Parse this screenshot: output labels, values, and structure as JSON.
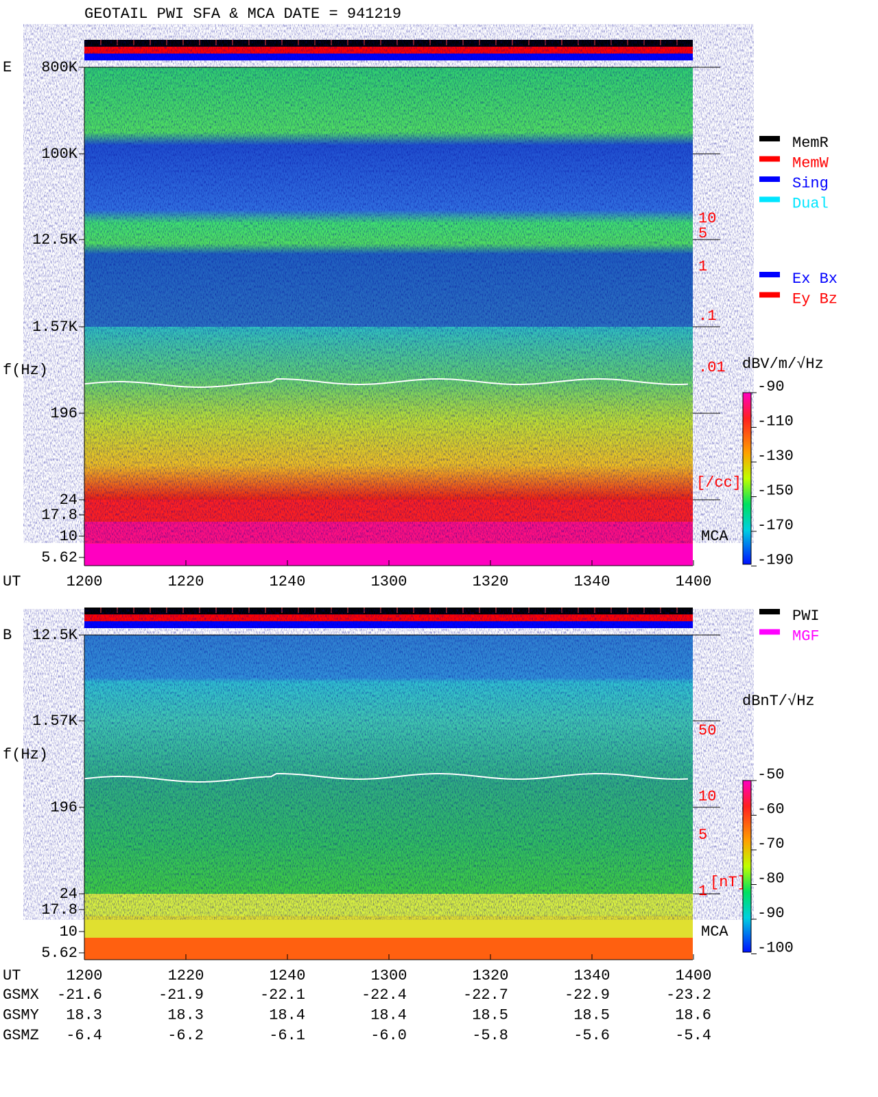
{
  "title": "GEOTAIL  PWI SFA & MCA   DATE = 941219",
  "panels": [
    {
      "component": "E",
      "y_axis_label": "f(Hz)",
      "time_axis_label": "UT",
      "freq_labels": [
        "800K",
        "100K",
        "12.5K",
        "1.57K",
        "196",
        "24",
        "17.8",
        "10",
        "5.62"
      ],
      "time_labels": [
        "1200",
        "1220",
        "1240",
        "1300",
        "1320",
        "1340",
        "1400"
      ],
      "scale_labels": [
        "10",
        "5",
        "1",
        ".1",
        ".01"
      ],
      "scale_unit": "[/cc]",
      "mca_label": "MCA",
      "colorbar_unit": "dBV/m/√Hz",
      "colorbar_labels": [
        "-90",
        "-110",
        "-130",
        "-150",
        "-170",
        "-190"
      ],
      "legend": [
        {
          "label": "MemR",
          "color": "#000000"
        },
        {
          "label": "MemW",
          "color": "#ff0000"
        },
        {
          "label": "Sing",
          "color": "#0000ff"
        },
        {
          "label": "Dual",
          "color": "#00e5ff"
        }
      ],
      "legend_components": [
        {
          "label": "Ex Bx",
          "color": "#0000ff"
        },
        {
          "label": "Ey Bz",
          "color": "#ff0000"
        }
      ]
    },
    {
      "component": "B",
      "y_axis_label": "f(Hz)",
      "time_axis_label": "UT",
      "freq_labels": [
        "12.5K",
        "1.57K",
        "196",
        "24",
        "17.8",
        "10",
        "5.62"
      ],
      "time_labels": [
        "1200",
        "1220",
        "1240",
        "1300",
        "1320",
        "1340",
        "1400"
      ],
      "scale_labels": [
        "50",
        "10",
        "5",
        "1"
      ],
      "scale_unit": "[nT]",
      "mca_label": "MCA",
      "colorbar_unit": "dBnT/√Hz",
      "colorbar_labels": [
        "-50",
        "-60",
        "-70",
        "-80",
        "-90",
        "-100"
      ],
      "legend": [
        {
          "label": "PWI",
          "color": "#000000"
        },
        {
          "label": "MGF",
          "color": "#ff00ff"
        }
      ]
    }
  ],
  "orbit": [
    {
      "label": "GSMX",
      "values": [
        "-21.6",
        "-21.9",
        "-22.1",
        "-22.4",
        "-22.7",
        "-22.9",
        "-23.2"
      ]
    },
    {
      "label": "GSMY",
      "values": [
        "18.3",
        "18.3",
        "18.4",
        "18.4",
        "18.5",
        "18.5",
        "18.6"
      ]
    },
    {
      "label": "GSMZ",
      "values": [
        "-6.4",
        "-6.2",
        "-6.1",
        "-6.0",
        "-5.8",
        "-5.6",
        "-5.4"
      ]
    }
  ]
}
